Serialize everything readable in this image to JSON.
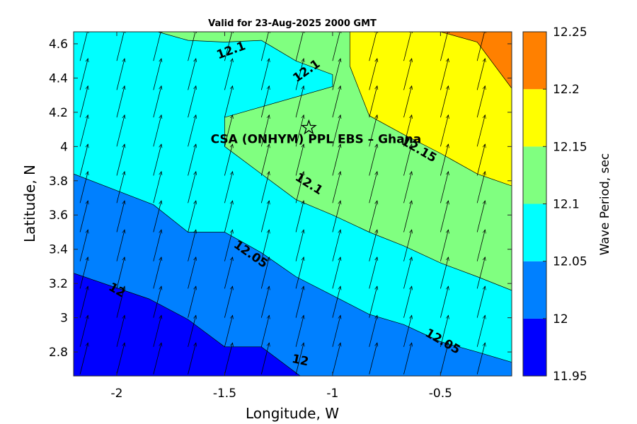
{
  "chart_data": {
    "type": "heatmap",
    "subtype": "filled-contour-with-vectors",
    "title": "Valid for 23-Aug-2025 2000 GMT",
    "xlabel": "Longitude, W",
    "ylabel": "Latitude, N",
    "xlim": [
      -2.2,
      -0.17
    ],
    "ylim": [
      2.66,
      4.67
    ],
    "xticks": [
      -2,
      -1.5,
      -1,
      -0.5
    ],
    "xtick_labels": [
      "-2",
      "-1.5",
      "-1",
      "-0.5"
    ],
    "yticks": [
      2.8,
      3,
      3.2,
      3.4,
      3.6,
      3.8,
      4,
      4.2,
      4.4,
      4.6
    ],
    "ytick_labels": [
      "2.8",
      "3",
      "3.2",
      "3.4",
      "3.6",
      "3.8",
      "4",
      "4.2",
      "4.4",
      "4.6"
    ],
    "grid": false,
    "colorbar": {
      "label": "Wave Period, sec",
      "levels": [
        11.95,
        12,
        12.05,
        12.1,
        12.15,
        12.2,
        12.25
      ],
      "tick_labels": [
        "11.95",
        "12",
        "12.05",
        "12.1",
        "12.15",
        "12.2",
        "12.25"
      ],
      "colors": [
        "#0000ff",
        "#0080ff",
        "#00ffff",
        "#80ff80",
        "#ffff00",
        "#ff8000"
      ]
    },
    "contours": [
      {
        "level": 12,
        "points": [
          [
            -2.2,
            3.26
          ],
          [
            -1.85,
            3.11
          ],
          [
            -1.67,
            2.99
          ],
          [
            -1.5,
            2.83
          ],
          [
            -1.33,
            2.83
          ],
          [
            -1.15,
            2.66
          ]
        ]
      },
      {
        "level": 12.05,
        "points": [
          [
            -2.2,
            3.84
          ],
          [
            -1.83,
            3.66
          ],
          [
            -1.67,
            3.5
          ],
          [
            -1.5,
            3.5
          ],
          [
            -1.33,
            3.38
          ],
          [
            -1.17,
            3.24
          ],
          [
            -1,
            3.13
          ],
          [
            -0.83,
            3.02
          ],
          [
            -0.67,
            2.96
          ],
          [
            -0.5,
            2.86
          ],
          [
            -0.33,
            2.8
          ],
          [
            -0.17,
            2.74
          ]
        ]
      },
      {
        "level": 12.1,
        "points": [
          [
            -1.81,
            4.67
          ],
          [
            -1.67,
            4.62
          ],
          [
            -1.5,
            4.61
          ],
          [
            -1.33,
            4.62
          ],
          [
            -1.17,
            4.5
          ],
          [
            -1.0,
            4.42
          ],
          [
            -1.0,
            4.35
          ],
          [
            -1.5,
            4.17
          ],
          [
            -1.5,
            4.0
          ],
          [
            -1.33,
            3.84
          ],
          [
            -1.17,
            3.69
          ],
          [
            -1.0,
            3.6
          ],
          [
            -0.83,
            3.5
          ],
          [
            -0.67,
            3.42
          ],
          [
            -0.5,
            3.32
          ],
          [
            -0.33,
            3.24
          ],
          [
            -0.17,
            3.16
          ]
        ]
      },
      {
        "level": 12.15,
        "points": [
          [
            -0.92,
            4.67
          ],
          [
            -0.92,
            4.47
          ],
          [
            -0.83,
            4.18
          ],
          [
            -0.67,
            4.07
          ],
          [
            -0.5,
            3.96
          ],
          [
            -0.33,
            3.84
          ],
          [
            -0.17,
            3.77
          ]
        ]
      },
      {
        "level": 12.2,
        "points": [
          [
            -0.5,
            4.67
          ],
          [
            -0.33,
            4.61
          ],
          [
            -0.17,
            4.34
          ]
        ]
      }
    ],
    "contour_labels": [
      {
        "text": "12.1",
        "x": -1.47,
        "y": 4.56,
        "angle": -20
      },
      {
        "text": "12.1",
        "x": -1.12,
        "y": 4.44,
        "angle": -35
      },
      {
        "text": "12.15",
        "x": -0.6,
        "y": 3.98,
        "angle": 30
      },
      {
        "text": "12.1",
        "x": -1.11,
        "y": 3.78,
        "angle": 32
      },
      {
        "text": "12.05",
        "x": -1.38,
        "y": 3.37,
        "angle": 35
      },
      {
        "text": "12",
        "x": -2.0,
        "y": 3.16,
        "angle": 30
      },
      {
        "text": "12.05",
        "x": -0.49,
        "y": 2.86,
        "angle": 30
      },
      {
        "text": "12",
        "x": -1.15,
        "y": 2.75,
        "angle": 12
      }
    ],
    "vector_field": {
      "x": [
        -2.17,
        -2.0,
        -1.83,
        -1.67,
        -1.5,
        -1.33,
        -1.17,
        -1.0,
        -0.83,
        -0.67,
        -0.5,
        -0.33,
        -0.17
      ],
      "y": [
        2.67,
        2.83,
        3.0,
        3.17,
        3.33,
        3.5,
        3.67,
        3.83,
        4.0,
        4.17,
        4.33,
        4.5,
        4.67
      ],
      "u": 0.25,
      "v": 1.0
    },
    "site": {
      "label": "CSA (ONHYM) PPL EBS  – Ghana",
      "x": -1.11,
      "y": 4.11,
      "marker": "star"
    }
  }
}
